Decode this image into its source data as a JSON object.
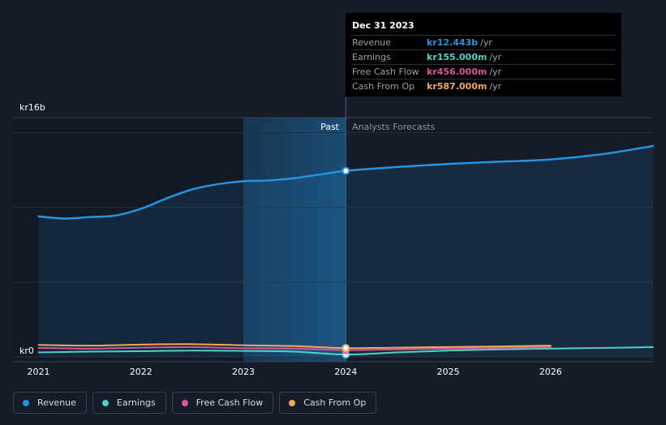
{
  "chart_data": {
    "type": "line",
    "currency_prefix": "kr",
    "y_axis": {
      "top_label": "kr16b",
      "bottom_label": "kr0",
      "ylim": [
        0,
        16
      ]
    },
    "x_axis": {
      "ticks": [
        {
          "label": "2021",
          "value": 2021.0
        },
        {
          "label": "2022",
          "value": 2022.0
        },
        {
          "label": "2023",
          "value": 2023.0
        },
        {
          "label": "2024",
          "value": 2024.0
        },
        {
          "label": "2025",
          "value": 2025.0
        },
        {
          "label": "2026",
          "value": 2026.0
        }
      ],
      "xlim": [
        2020.75,
        2027.0
      ]
    },
    "divider": {
      "value": 2024.0,
      "past_label": "Past",
      "forecast_label": "Analysts Forecasts"
    },
    "highlight_start": 2023.0,
    "series": [
      {
        "name": "Revenue",
        "color": "#2394df",
        "area": true,
        "points": [
          [
            2021.0,
            9.4
          ],
          [
            2021.25,
            9.25
          ],
          [
            2021.5,
            9.35
          ],
          [
            2021.75,
            9.45
          ],
          [
            2022.0,
            9.9
          ],
          [
            2022.25,
            10.6
          ],
          [
            2022.5,
            11.2
          ],
          [
            2022.75,
            11.55
          ],
          [
            2023.0,
            11.75
          ],
          [
            2023.25,
            11.8
          ],
          [
            2023.5,
            11.95
          ],
          [
            2023.75,
            12.2
          ],
          [
            2024.0,
            12.443
          ],
          [
            2024.5,
            12.7
          ],
          [
            2025.0,
            12.9
          ],
          [
            2025.5,
            13.05
          ],
          [
            2026.0,
            13.2
          ],
          [
            2026.5,
            13.55
          ],
          [
            2027.0,
            14.1
          ]
        ]
      },
      {
        "name": "Earnings",
        "color": "#4fd1c5",
        "area": false,
        "points": [
          [
            2021.0,
            0.3
          ],
          [
            2021.5,
            0.35
          ],
          [
            2022.0,
            0.38
          ],
          [
            2022.5,
            0.42
          ],
          [
            2023.0,
            0.4
          ],
          [
            2023.5,
            0.35
          ],
          [
            2024.0,
            0.155
          ],
          [
            2024.5,
            0.3
          ],
          [
            2025.0,
            0.42
          ],
          [
            2025.5,
            0.5
          ],
          [
            2026.0,
            0.55
          ],
          [
            2026.5,
            0.6
          ],
          [
            2027.0,
            0.65
          ]
        ]
      },
      {
        "name": "Free Cash Flow",
        "color": "#d9559a",
        "area": false,
        "points": [
          [
            2021.0,
            0.6
          ],
          [
            2021.5,
            0.55
          ],
          [
            2022.0,
            0.62
          ],
          [
            2022.5,
            0.65
          ],
          [
            2023.0,
            0.58
          ],
          [
            2023.5,
            0.55
          ],
          [
            2024.0,
            0.456
          ],
          [
            2024.5,
            0.5
          ],
          [
            2025.0,
            0.55
          ],
          [
            2025.5,
            0.6
          ],
          [
            2026.0,
            0.65
          ]
        ]
      },
      {
        "name": "Cash From Op",
        "color": "#f0a95a",
        "area": false,
        "points": [
          [
            2021.0,
            0.8
          ],
          [
            2021.5,
            0.75
          ],
          [
            2022.0,
            0.82
          ],
          [
            2022.5,
            0.85
          ],
          [
            2023.0,
            0.78
          ],
          [
            2023.5,
            0.72
          ],
          [
            2024.0,
            0.587
          ],
          [
            2024.5,
            0.62
          ],
          [
            2025.0,
            0.66
          ],
          [
            2025.5,
            0.7
          ],
          [
            2026.0,
            0.75
          ]
        ]
      }
    ]
  },
  "tooltip": {
    "date": "Dec 31 2023",
    "rows": [
      {
        "label": "Revenue",
        "value": "kr12.443b",
        "unit": "/yr",
        "color": "#2394df"
      },
      {
        "label": "Earnings",
        "value": "kr155.000m",
        "unit": "/yr",
        "color": "#4fd1c5"
      },
      {
        "label": "Free Cash Flow",
        "value": "kr456.000m",
        "unit": "/yr",
        "color": "#d9559a"
      },
      {
        "label": "Cash From Op",
        "value": "kr587.000m",
        "unit": "/yr",
        "color": "#f0a95a"
      }
    ]
  },
  "legend": [
    {
      "label": "Revenue",
      "color": "#2394df"
    },
    {
      "label": "Earnings",
      "color": "#4fd1c5"
    },
    {
      "label": "Free Cash Flow",
      "color": "#d9559a"
    },
    {
      "label": "Cash From Op",
      "color": "#f0a95a"
    }
  ]
}
